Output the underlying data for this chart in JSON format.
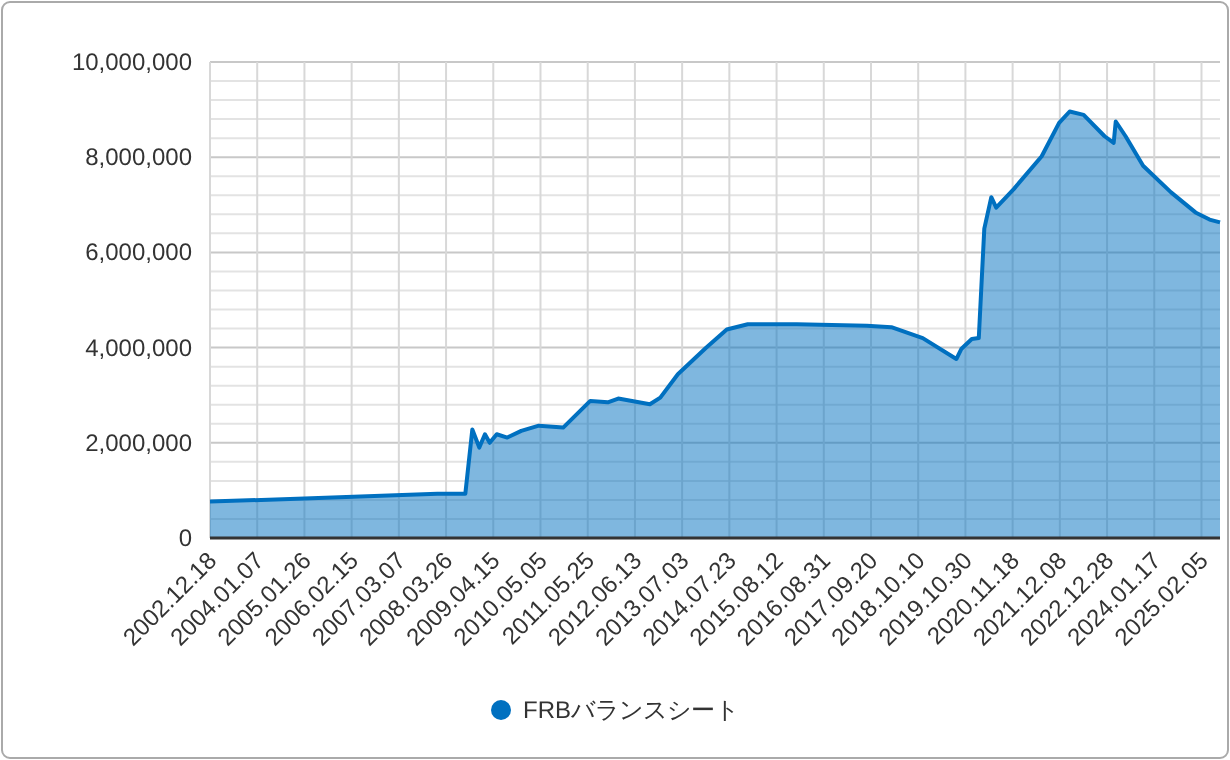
{
  "chart_data": {
    "type": "area",
    "x": [
      "2002-12-18",
      "2005-01-26",
      "2008-01-15",
      "2008-08-30",
      "2008-10-26",
      "2008-12-22",
      "2009-02-06",
      "2009-03-17",
      "2009-05-13",
      "2009-08-07",
      "2009-11-29",
      "2010-04-21",
      "2010-11-06",
      "2011-06-15",
      "2011-11-05",
      "2012-01-29",
      "2012-10-13",
      "2013-01-06",
      "2013-05-29",
      "2014-01-12",
      "2014-07-02",
      "2014-12-20",
      "2016-01-24",
      "2017-08-17",
      "2018-03-05",
      "2018-11-16",
      "2019-08-17",
      "2019-09-26",
      "2019-12-21",
      "2020-02-16",
      "2020-04-01",
      "2020-05-28",
      "2020-07-07",
      "2020-11-27",
      "2021-07-13",
      "2021-12-02",
      "2022-02-26",
      "2022-06-20",
      "2022-12-08",
      "2023-02-20",
      "2023-03-09",
      "2023-05-28",
      "2023-10-18",
      "2024-06-02",
      "2024-12-18",
      "2025-04-12",
      "2025-07-06"
    ],
    "series": [
      {
        "name": "FRBバランスシート",
        "color": "#0070c0",
        "values": [
          765000,
          830000,
          930000,
          930000,
          2280000,
          1900000,
          2180000,
          2000000,
          2180000,
          2110000,
          2250000,
          2360000,
          2320000,
          2880000,
          2850000,
          2930000,
          2810000,
          2950000,
          3440000,
          3990000,
          4380000,
          4490000,
          4490000,
          4460000,
          4430000,
          4200000,
          3760000,
          3970000,
          4180000,
          4200000,
          6500000,
          7160000,
          6940000,
          7330000,
          8020000,
          8720000,
          8960000,
          8890000,
          8440000,
          8300000,
          8750000,
          8440000,
          7820000,
          7260000,
          6840000,
          6690000,
          6630000
        ]
      }
    ],
    "xlim": [
      "2002-12-18",
      "2025-07-06"
    ],
    "xticks": [
      {
        "value": "2002-12-18",
        "label": "2002.12.18"
      },
      {
        "value": "2004-01-07",
        "label": "2004.01.07"
      },
      {
        "value": "2005-01-26",
        "label": "2005.01.26"
      },
      {
        "value": "2006-02-15",
        "label": "2006.02.15"
      },
      {
        "value": "2007-03-07",
        "label": "2007.03.07"
      },
      {
        "value": "2008-03-26",
        "label": "2008.03.26"
      },
      {
        "value": "2009-04-15",
        "label": "2009.04.15"
      },
      {
        "value": "2010-05-05",
        "label": "2010.05.05"
      },
      {
        "value": "2011-05-25",
        "label": "2011.05.25"
      },
      {
        "value": "2012-06-13",
        "label": "2012.06.13"
      },
      {
        "value": "2013-07-03",
        "label": "2013.07.03"
      },
      {
        "value": "2014-07-23",
        "label": "2014.07.23"
      },
      {
        "value": "2015-08-12",
        "label": "2015.08.12"
      },
      {
        "value": "2016-08-31",
        "label": "2016.08.31"
      },
      {
        "value": "2017-09-20",
        "label": "2017.09.20"
      },
      {
        "value": "2018-10-10",
        "label": "2018.10.10"
      },
      {
        "value": "2019-10-30",
        "label": "2019.10.30"
      },
      {
        "value": "2020-11-18",
        "label": "2020.11.18"
      },
      {
        "value": "2021-12-08",
        "label": "2021.12.08"
      },
      {
        "value": "2022-12-28",
        "label": "2022.12.28"
      },
      {
        "value": "2024-01-17",
        "label": "2024.01.17"
      },
      {
        "value": "2025-02-05",
        "label": "2025.02.05"
      }
    ],
    "ylim": [
      0,
      10000000
    ],
    "yticks": [
      0,
      {
        "value": 400000,
        "label": null
      },
      {
        "value": 800000,
        "label": null
      },
      {
        "value": 1200000,
        "label": null
      },
      {
        "value": 1600000,
        "label": null
      },
      {
        "value": 2000000,
        "label": "2,000,000"
      },
      {
        "value": 2400000,
        "label": null
      },
      {
        "value": 2800000,
        "label": null
      },
      {
        "value": 3200000,
        "label": null
      },
      {
        "value": 3600000,
        "label": null
      },
      {
        "value": 4000000,
        "label": "4,000,000"
      },
      {
        "value": 4400000,
        "label": null
      },
      {
        "value": 4800000,
        "label": null
      },
      {
        "value": 5200000,
        "label": null
      },
      {
        "value": 5600000,
        "label": null
      },
      {
        "value": 6000000,
        "label": "6,000,000"
      },
      {
        "value": 6400000,
        "label": null
      },
      {
        "value": 6800000,
        "label": null
      },
      {
        "value": 7200000,
        "label": null
      },
      {
        "value": 7600000,
        "label": null
      },
      {
        "value": 8000000,
        "label": "8,000,000"
      },
      {
        "value": 8400000,
        "label": null
      },
      {
        "value": 8800000,
        "label": null
      },
      {
        "value": 9200000,
        "label": null
      },
      {
        "value": 9600000,
        "label": null
      },
      {
        "value": 10000000,
        "label": "10,000,000"
      }
    ],
    "grid": true,
    "legend": "bottom"
  }
}
